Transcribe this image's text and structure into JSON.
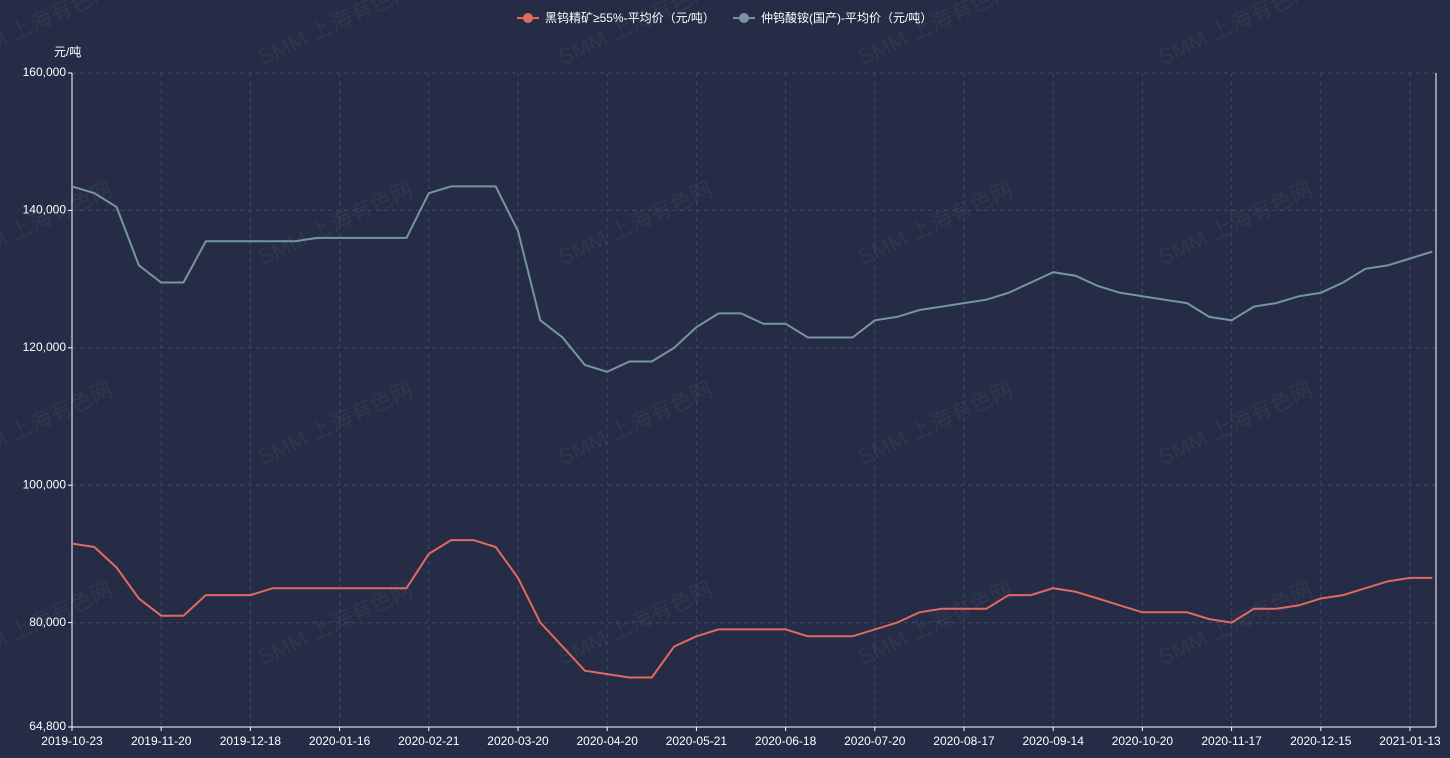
{
  "chart_data": {
    "type": "line",
    "y_unit": "元/吨",
    "watermark": "SMM 上海有色网",
    "categories": [
      "2019-10-23",
      null,
      null,
      null,
      "2019-11-20",
      null,
      null,
      null,
      "2019-12-18",
      null,
      null,
      null,
      "2020-01-16",
      null,
      null,
      null,
      "2020-02-21",
      null,
      null,
      null,
      "2020-03-20",
      null,
      null,
      null,
      "2020-04-20",
      null,
      null,
      null,
      "2020-05-21",
      null,
      null,
      null,
      "2020-06-18",
      null,
      null,
      null,
      "2020-07-20",
      null,
      null,
      null,
      "2020-08-17",
      null,
      null,
      null,
      "2020-09-14",
      null,
      null,
      null,
      "2020-10-20",
      null,
      null,
      null,
      "2020-11-17",
      null,
      null,
      null,
      "2020-12-15",
      null,
      null,
      null,
      "2021-01-13",
      null
    ],
    "series": [
      {
        "name": "黑钨精矿≥55%-平均价（元/吨）",
        "color": "#e06a60",
        "values": [
          91500,
          91000,
          88000,
          83500,
          81000,
          81000,
          84000,
          84000,
          84000,
          85000,
          85000,
          85000,
          85000,
          85000,
          85000,
          85000,
          90000,
          92000,
          92000,
          91000,
          86500,
          80000,
          76500,
          73000,
          72500,
          72000,
          72000,
          76500,
          78000,
          79000,
          79000,
          79000,
          79000,
          78000,
          78000,
          78000,
          79000,
          80000,
          81500,
          82000,
          82000,
          82000,
          84000,
          84000,
          85000,
          84500,
          83500,
          82500,
          81500,
          81500,
          81500,
          80500,
          80000,
          82000,
          82000,
          82500,
          83500,
          84000,
          85000,
          86000,
          86500,
          86500
        ]
      },
      {
        "name": "仲钨酸铵(国产)-平均价（元/吨）",
        "color": "#7596a0",
        "values": [
          143500,
          142500,
          140500,
          132000,
          129500,
          129500,
          135500,
          135500,
          135500,
          135500,
          135500,
          136000,
          136000,
          136000,
          136000,
          136000,
          142500,
          143500,
          143500,
          143500,
          137000,
          124000,
          121500,
          117500,
          116500,
          118000,
          118000,
          120000,
          123000,
          125000,
          125000,
          123500,
          123500,
          121500,
          121500,
          121500,
          124000,
          124500,
          125500,
          126000,
          126500,
          127000,
          128000,
          129500,
          131000,
          130500,
          129000,
          128000,
          127500,
          127000,
          126500,
          124500,
          124000,
          126000,
          126500,
          127500,
          128000,
          129500,
          131500,
          132000,
          133000,
          134000
        ]
      }
    ],
    "ylim": [
      64800,
      160000
    ],
    "yticks": [
      {
        "value": 64800,
        "label": "64,800"
      },
      {
        "value": 80000,
        "label": "80,000"
      },
      {
        "value": 100000,
        "label": "100,000"
      },
      {
        "value": 120000,
        "label": "120,000"
      },
      {
        "value": 140000,
        "label": "140,000"
      },
      {
        "value": 160000,
        "label": "160,000"
      }
    ],
    "grid": true,
    "legend": "top"
  }
}
